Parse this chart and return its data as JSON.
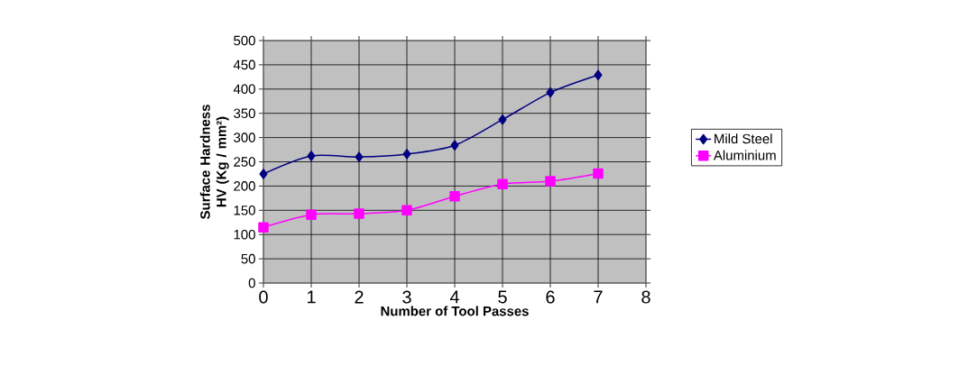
{
  "chart_data": {
    "type": "line",
    "xlabel": "Number of Tool Passes",
    "ylabel": "Surface Hardness HV (Kg / mm²)",
    "x": [
      0,
      1,
      2,
      3,
      4,
      5,
      6,
      7
    ],
    "series": [
      {
        "name": "Mild Steel",
        "color": "#000080",
        "marker": "diamond",
        "values": [
          225,
          262,
          260,
          266,
          284,
          337,
          393,
          429
        ]
      },
      {
        "name": "Aluminium",
        "color": "#ff00ff",
        "marker": "square",
        "values": [
          115,
          141,
          143,
          150,
          179,
          204,
          210,
          226
        ]
      }
    ],
    "xlim": [
      0,
      8
    ],
    "xticks": [
      0,
      1,
      2,
      3,
      4,
      5,
      6,
      7,
      8
    ],
    "ylim": [
      0,
      500
    ],
    "yticks": [
      0,
      50,
      100,
      150,
      200,
      250,
      300,
      350,
      400,
      450,
      500
    ],
    "grid": true,
    "legend": "right",
    "line_style": "solid"
  }
}
